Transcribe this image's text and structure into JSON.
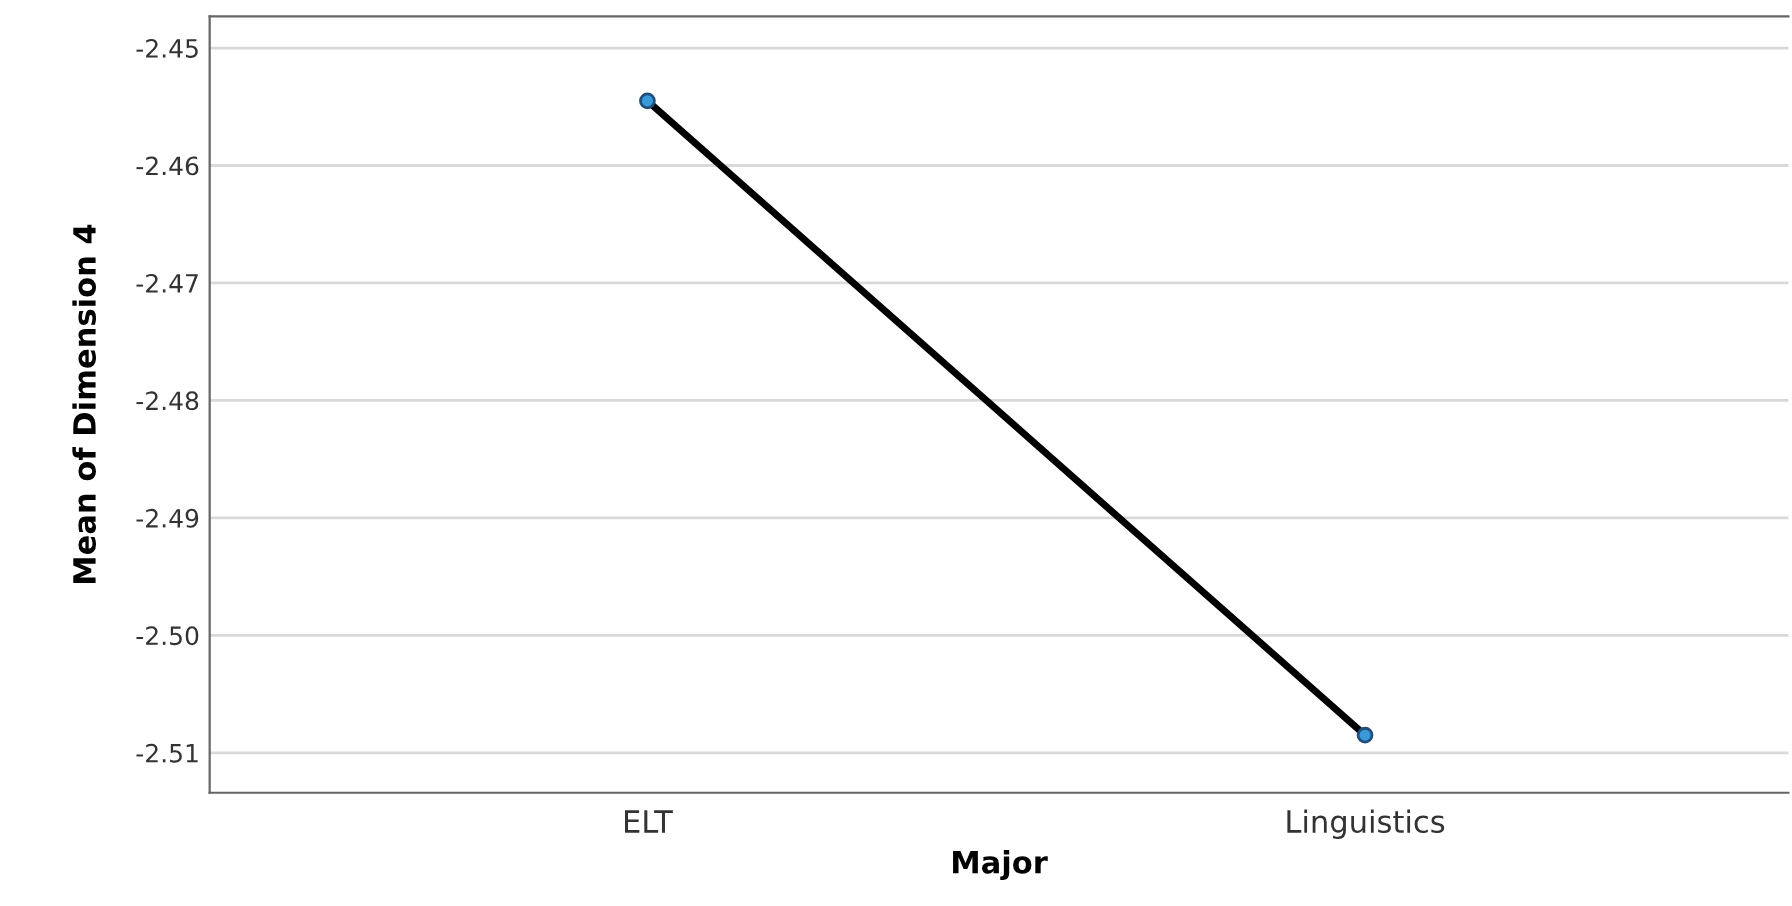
{
  "chart_data": {
    "type": "line",
    "xlabel": "Major",
    "ylabel": "Mean of Dimension 4",
    "categories": [
      "ELT",
      "Linguistics"
    ],
    "series": [
      {
        "color": "#000000",
        "values": [
          -2.4545,
          -2.5085
        ]
      }
    ],
    "marker": "circle",
    "line_style": "solid",
    "ylim": [
      -2.5134,
      -2.4473
    ],
    "yticks": [
      -2.45,
      -2.46,
      -2.47,
      -2.48,
      -2.49,
      {
        "value": -2.5,
        "label": "-2.50"
      },
      -2.51
    ],
    "grid": "y"
  }
}
